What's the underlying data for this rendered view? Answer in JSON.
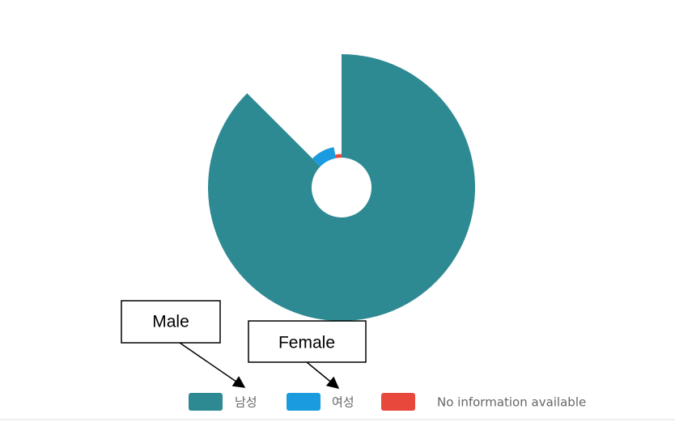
{
  "chart_data": {
    "type": "doughnut",
    "categories": [
      "남성",
      "여성",
      "No information available"
    ],
    "values": [
      87.5,
      9.5,
      3
    ],
    "colors": [
      "#2e8a92",
      "#1a9be0",
      "#e8473c"
    ],
    "annotations": [
      "Male",
      "Female"
    ]
  }
}
